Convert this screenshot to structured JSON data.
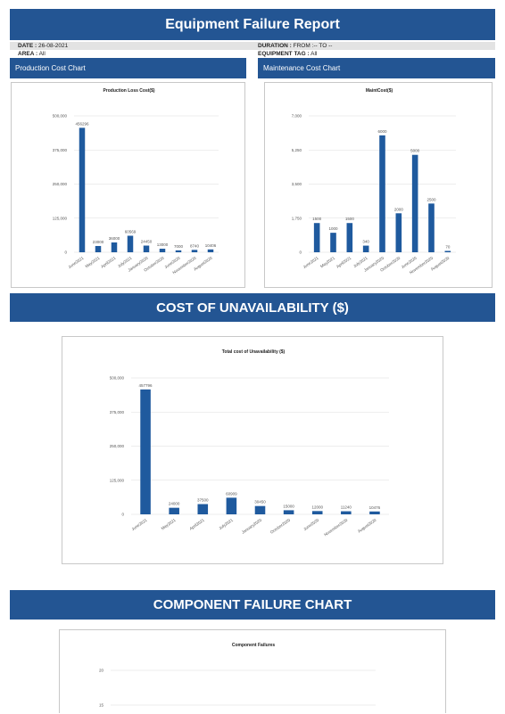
{
  "header": {
    "title": "Equipment Failure Report"
  },
  "info": [
    {
      "label": "DATE :",
      "value": "26-08-2021"
    },
    {
      "label": "AREA :",
      "value": "All"
    },
    {
      "label": "DURATION :",
      "value": "FROM :-- TO --"
    },
    {
      "label": "EQUIPMENT TAG :",
      "value": "All"
    }
  ],
  "sections": {
    "production": "Production Cost Chart",
    "maintenance": "Maintenance Cost Chart",
    "unavailability": "COST OF UNAVAILABILITY ($)",
    "component": "COMPONENT FAILURE CHART"
  },
  "chart_data": [
    {
      "type": "bar",
      "title": "Production Loss Cost($)",
      "color": "#1f5a9e",
      "grid": true,
      "categories": [
        "June2021",
        "May2021",
        "April2021",
        "July2021",
        "January2020",
        "October2020",
        "June2020",
        "November2020",
        "August2020"
      ],
      "values": [
        456296,
        23000,
        36000,
        60569,
        24450,
        13000,
        7000,
        8740,
        10406
      ],
      "ylim": [
        0,
        500000
      ],
      "yticks": [
        0,
        {
          "value": 125000,
          "label": "125,000"
        },
        {
          "value": 250000,
          "label": "250,000"
        },
        {
          "value": 375000,
          "label": "375,000"
        },
        {
          "value": 500000,
          "label": "500,000"
        }
      ]
    },
    {
      "type": "bar",
      "title": "MaintCost($)",
      "color": "#1f5a9e",
      "grid": true,
      "categories": [
        "June2021",
        "May2021",
        "April2021",
        "July2021",
        "January2020",
        "October2020",
        "June2020",
        "November2020",
        "August2020"
      ],
      "values": [
        1500,
        1000,
        1500,
        340,
        6000,
        2000,
        5000,
        2500,
        70
      ],
      "ylim": [
        0,
        7000
      ],
      "yticks": [
        0,
        {
          "value": 1750,
          "label": "1,750"
        },
        {
          "value": 3500,
          "label": "3,500"
        },
        {
          "value": 5250,
          "label": "5,250"
        },
        {
          "value": 7000,
          "label": "7,000"
        }
      ]
    },
    {
      "type": "bar",
      "title": "Total cost of Unavailability ($)",
      "color": "#1f5a9e",
      "grid": true,
      "categories": [
        "June2021",
        "May2021",
        "April2021",
        "July2021",
        "January2020",
        "October2020",
        "June2020",
        "November2020",
        "August2020"
      ],
      "values": [
        457796,
        24000,
        37500,
        60909,
        30450,
        15000,
        12000,
        11240,
        10476
      ],
      "ylim": [
        0,
        500000
      ],
      "yticks": [
        0,
        {
          "value": 125000,
          "label": "125,000"
        },
        {
          "value": 250000,
          "label": "250,000"
        },
        {
          "value": 375000,
          "label": "375,000"
        },
        {
          "value": 500000,
          "label": "500,000"
        }
      ]
    },
    {
      "type": "bar",
      "title": "Component Failures",
      "color": "#1f5a9e",
      "grid": true,
      "categories": [],
      "values": [],
      "ylim": [
        15,
        20
      ],
      "yticks": [
        15,
        20
      ]
    }
  ]
}
